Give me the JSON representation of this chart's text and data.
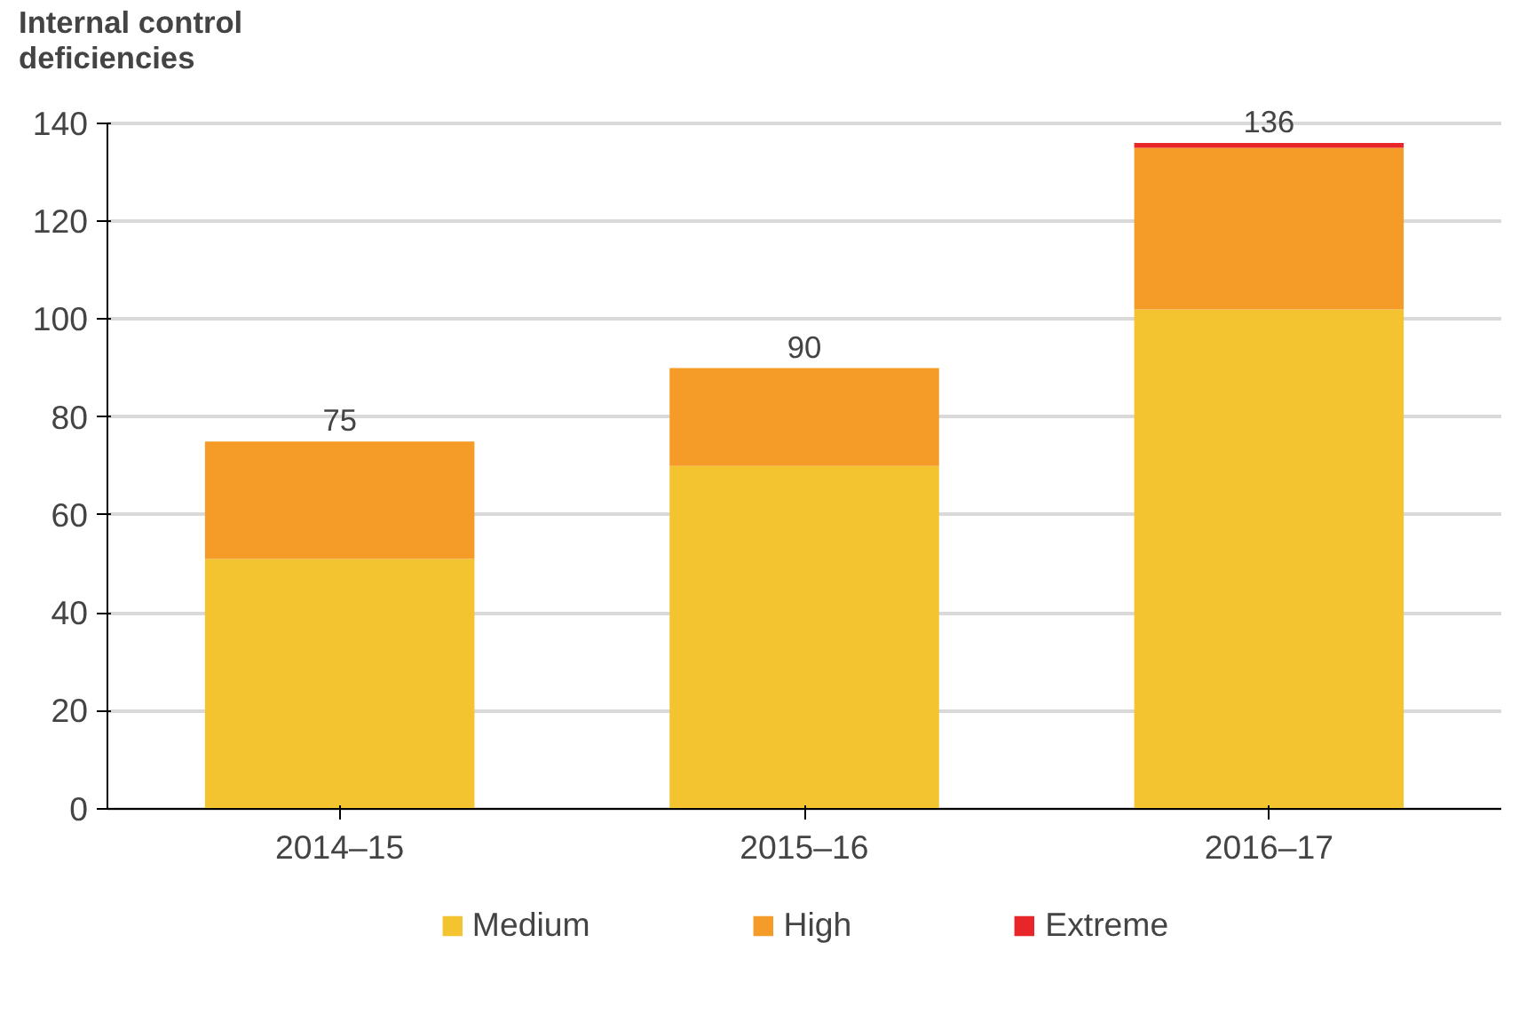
{
  "chart_data": {
    "type": "bar",
    "stacked": true,
    "ylabel": "Internal control deficiencies",
    "categories": [
      "2014–15",
      "2015–16",
      "2016–17"
    ],
    "series": [
      {
        "name": "Medium",
        "color": "#f4c430",
        "values": [
          51,
          70,
          102
        ]
      },
      {
        "name": "High",
        "color": "#f59b28",
        "values": [
          24,
          20,
          33
        ]
      },
      {
        "name": "Extreme",
        "color": "#e8262a",
        "values": [
          0,
          0,
          1
        ]
      }
    ],
    "totals": [
      "75",
      "90",
      "136"
    ],
    "ylim": [
      0,
      140
    ],
    "yticks": [
      0,
      20,
      40,
      60,
      80,
      100,
      120,
      140
    ],
    "grid": "y",
    "legend": "bottom"
  }
}
